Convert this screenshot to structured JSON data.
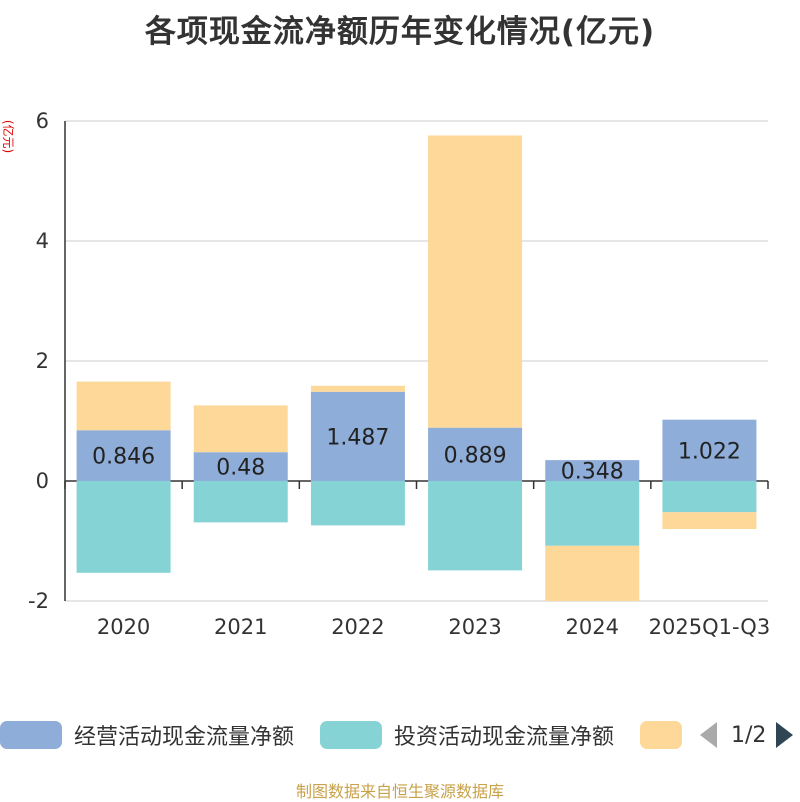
{
  "title": "各项现金流净额历年变化情况(亿元)",
  "unit_label": "(亿元)",
  "source": "制图数据来自恒生聚源数据库",
  "legend": {
    "items": [
      {
        "label": "经营活动现金流量净额",
        "color": "#8fadd9"
      },
      {
        "label": "投资活动现金流量净额",
        "color": "#86d3d6"
      },
      {
        "label": "",
        "color": "#fdd898"
      }
    ],
    "page": "1/2"
  },
  "chart_data": {
    "type": "bar",
    "stacked": true,
    "categories": [
      "2020",
      "2021",
      "2022",
      "2023",
      "2024",
      "2025Q1-Q3"
    ],
    "ylim": [
      -2,
      6
    ],
    "yticks": [
      -2,
      0,
      2,
      4,
      6
    ],
    "grid": true,
    "series": [
      {
        "name": "经营活动现金流量净额",
        "color": "#8fadd9",
        "values": [
          0.846,
          0.48,
          1.487,
          0.889,
          0.348,
          1.022
        ],
        "labels": [
          "0.846",
          "0.48",
          "1.487",
          "0.889",
          "0.348",
          "1.022"
        ]
      },
      {
        "name": "投资活动现金流量净额",
        "color": "#86d3d6",
        "values": [
          -1.53,
          -0.69,
          -0.74,
          -1.49,
          -1.08,
          -0.52
        ]
      },
      {
        "color": "#fdd898",
        "values": [
          0.81,
          0.78,
          0.1,
          4.87,
          -0.92,
          -0.28
        ]
      }
    ]
  }
}
